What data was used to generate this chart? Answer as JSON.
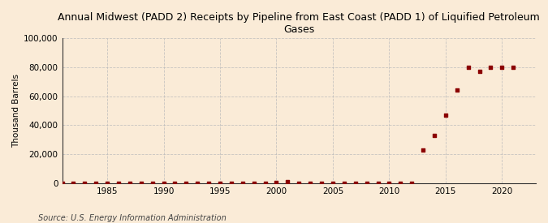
{
  "title": "Annual Midwest (PADD 2) Receipts by Pipeline from East Coast (PADD 1) of Liquified Petroleum\nGases",
  "ylabel": "Thousand Barrels",
  "source": "Source: U.S. Energy Information Administration",
  "background_color": "#faebd7",
  "plot_bg_color": "#faebd7",
  "marker_color": "#8b0000",
  "grid_color": "#bbbbbb",
  "xlim": [
    1981,
    2023
  ],
  "ylim": [
    0,
    100000
  ],
  "yticks": [
    0,
    20000,
    40000,
    60000,
    80000,
    100000
  ],
  "ytick_labels": [
    "0",
    "20,000",
    "40,000",
    "60,000",
    "80,000",
    "100,000"
  ],
  "xticks": [
    1985,
    1990,
    1995,
    2000,
    2005,
    2010,
    2015,
    2020
  ],
  "years": [
    1981,
    1982,
    1983,
    1984,
    1985,
    1986,
    1987,
    1988,
    1989,
    1990,
    1991,
    1992,
    1993,
    1994,
    1995,
    1996,
    1997,
    1998,
    1999,
    2000,
    2001,
    2002,
    2003,
    2004,
    2005,
    2006,
    2007,
    2008,
    2009,
    2010,
    2011,
    2012,
    2013,
    2014,
    2015,
    2016,
    2017,
    2018,
    2019,
    2020,
    2021
  ],
  "values": [
    0,
    0,
    0,
    0,
    0,
    0,
    0,
    0,
    0,
    0,
    0,
    0,
    0,
    0,
    0,
    0,
    0,
    0,
    0,
    500,
    1200,
    100,
    100,
    100,
    100,
    100,
    100,
    100,
    100,
    100,
    100,
    100,
    23000,
    33000,
    47000,
    64000,
    80000,
    77000,
    80000,
    80000,
    80000
  ],
  "title_fontsize": 9,
  "axis_fontsize": 7.5,
  "source_fontsize": 7
}
